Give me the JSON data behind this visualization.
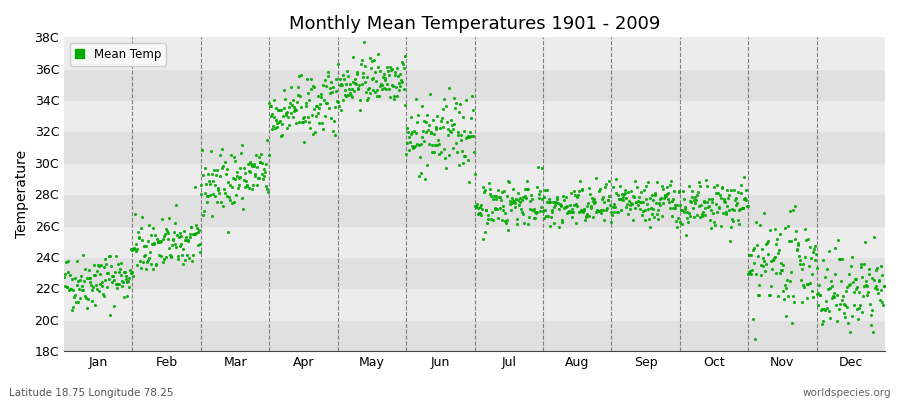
{
  "title": "Monthly Mean Temperatures 1901 - 2009",
  "ylabel": "Temperature",
  "xlabel": "",
  "ylim": [
    18,
    38
  ],
  "ytick_labels": [
    "18C",
    "20C",
    "22C",
    "24C",
    "26C",
    "28C",
    "30C",
    "32C",
    "34C",
    "36C",
    "38C"
  ],
  "ytick_values": [
    18,
    20,
    22,
    24,
    26,
    28,
    30,
    32,
    34,
    36,
    38
  ],
  "months": [
    "Jan",
    "Feb",
    "Mar",
    "Apr",
    "May",
    "Jun",
    "Jul",
    "Aug",
    "Sep",
    "Oct",
    "Nov",
    "Dec"
  ],
  "mean_temps": [
    22.3,
    24.5,
    28.5,
    33.0,
    35.0,
    31.5,
    27.2,
    27.0,
    27.2,
    27.0,
    23.0,
    21.5
  ],
  "std_temps": [
    0.9,
    0.9,
    1.0,
    1.0,
    0.8,
    1.2,
    0.8,
    0.7,
    0.7,
    0.8,
    1.5,
    1.3
  ],
  "warming_trend": [
    0.005,
    0.005,
    0.008,
    0.008,
    0.006,
    0.005,
    0.004,
    0.004,
    0.004,
    0.004,
    0.008,
    0.006
  ],
  "n_years": 109,
  "dot_color": "#00aa00",
  "dot_size": 5,
  "background_color": "#ffffff",
  "plot_bg_color_light": "#ececec",
  "plot_bg_color_dark": "#e0e0e0",
  "grid_color": "#666666",
  "footer_left": "Latitude 18.75 Longitude 78.25",
  "footer_right": "worldspecies.org",
  "legend_label": "Mean Temp",
  "figsize": [
    9.0,
    4.0
  ],
  "dpi": 100
}
